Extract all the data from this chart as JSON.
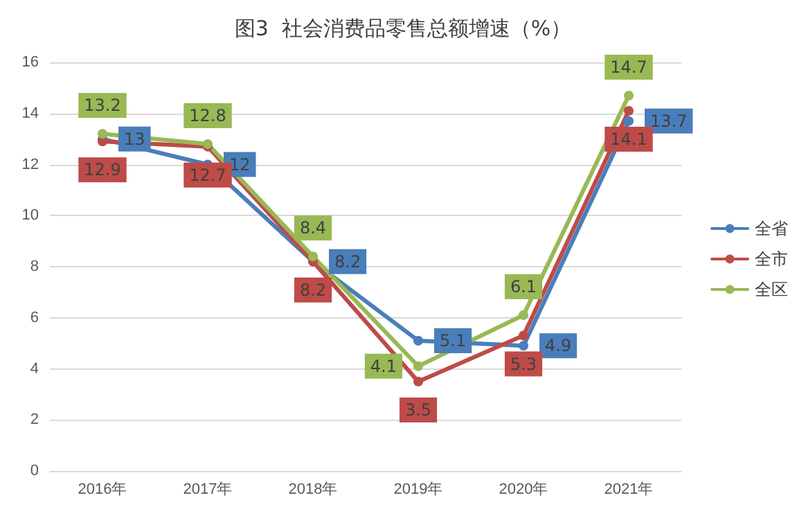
{
  "chart_data": {
    "type": "line",
    "title": "图3  社会消费品零售总额增速（%）",
    "categories": [
      "2016年",
      "2017年",
      "2018年",
      "2019年",
      "2020年",
      "2021年"
    ],
    "series": [
      {
        "name": "全省",
        "color": "#4a7ebb",
        "values": [
          13,
          12,
          8.2,
          5.1,
          4.9,
          13.7
        ]
      },
      {
        "name": "全市",
        "color": "#be4b48",
        "values": [
          12.9,
          12.7,
          8.2,
          3.5,
          5.3,
          14.1
        ]
      },
      {
        "name": "全区",
        "color": "#98b954",
        "values": [
          13.2,
          12.8,
          8.4,
          4.1,
          6.1,
          14.7
        ]
      }
    ],
    "ylim": [
      0,
      16
    ],
    "yticks": [
      0,
      2,
      4,
      6,
      8,
      10,
      12,
      14,
      16
    ],
    "grid": "y",
    "legend": "right",
    "marker": "circle",
    "line_style": "solid",
    "data_labels": true
  }
}
